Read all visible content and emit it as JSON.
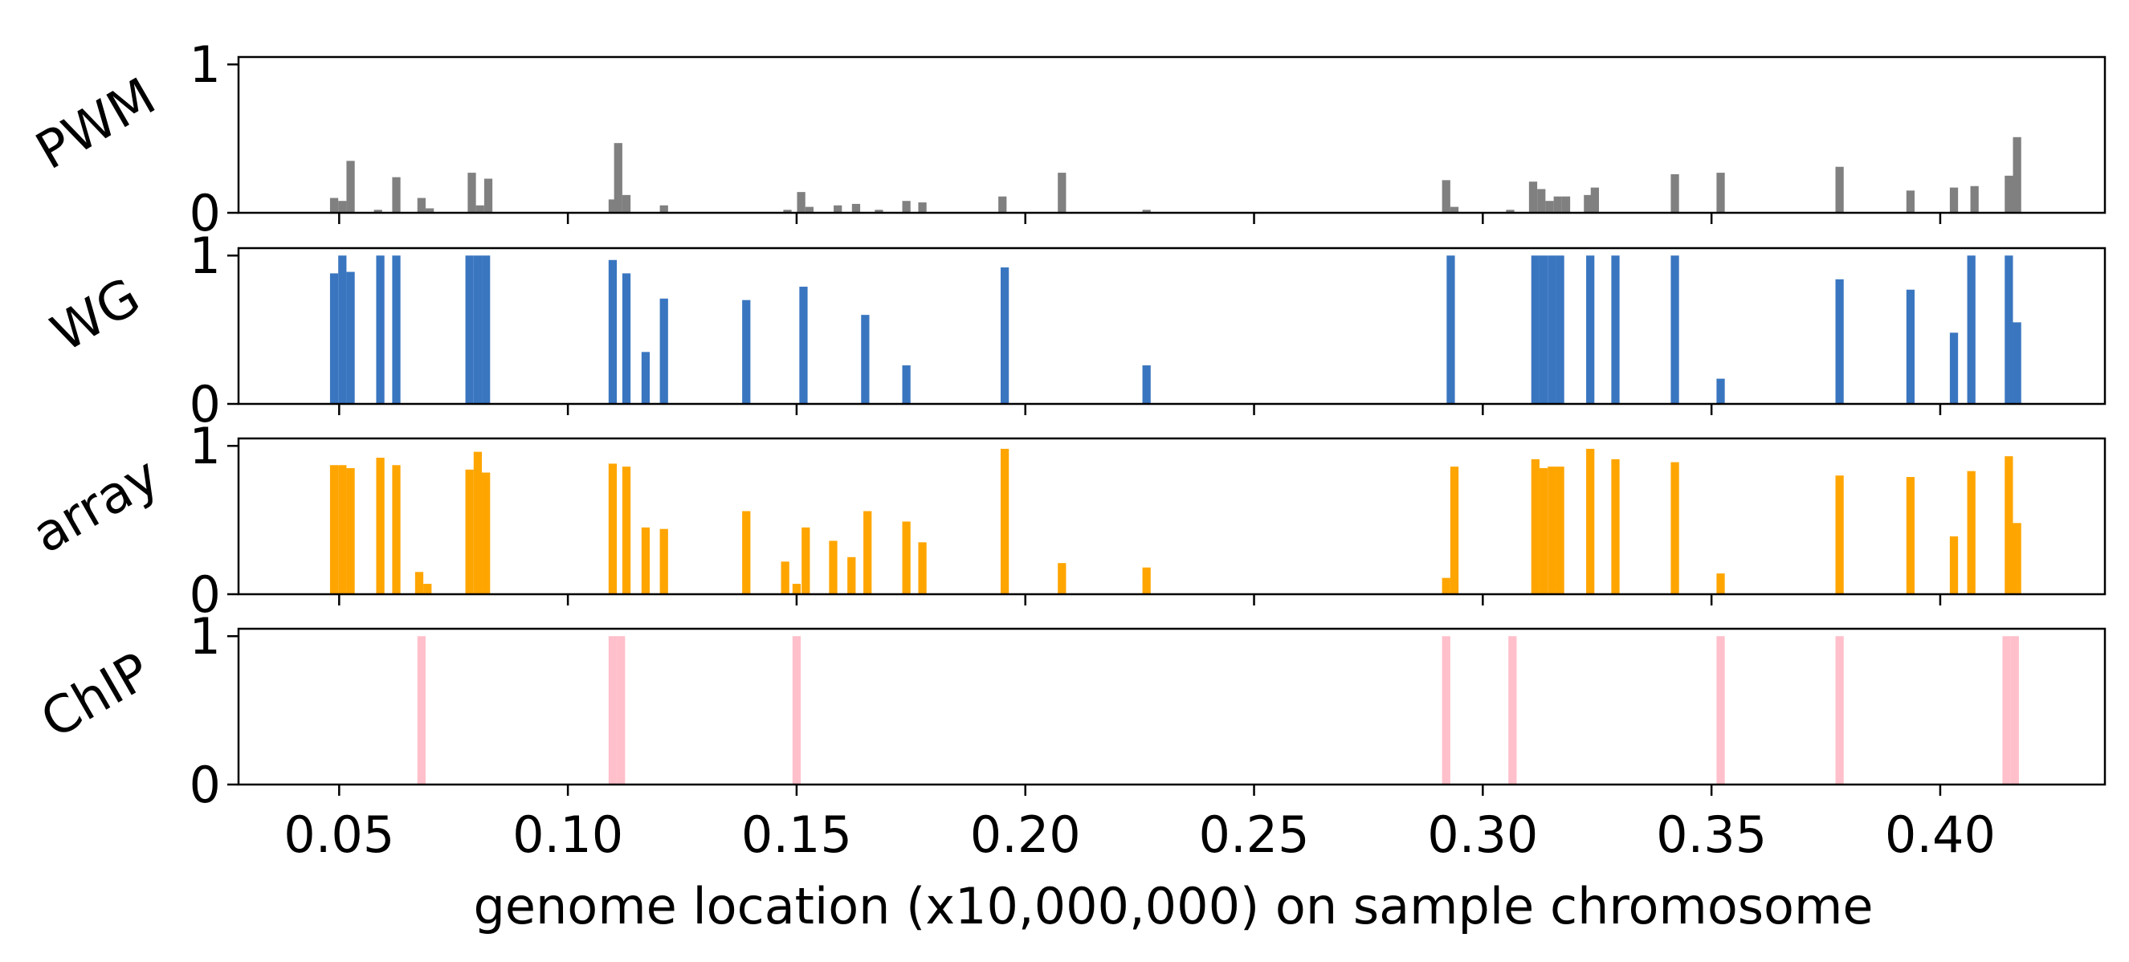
{
  "chart_data": {
    "type": "bar",
    "xlabel": "genome location (x10,000,000) on sample chromosome",
    "xlim": [
      0.028,
      0.436
    ],
    "xticks": [
      0.05,
      0.1,
      0.15,
      0.2,
      0.25,
      0.3,
      0.35,
      0.4
    ],
    "xtick_labels": [
      "0.05",
      "0.10",
      "0.15",
      "0.20",
      "0.25",
      "0.30",
      "0.35",
      "0.40"
    ],
    "ylim": [
      0,
      1.05
    ],
    "yticks": [
      0,
      1
    ],
    "ytick_labels": [
      "0",
      "1"
    ],
    "grid": false,
    "bar_width": 0.0018,
    "panels": [
      {
        "name": "PWM",
        "color": "#808080",
        "bars": [
          {
            "x": 0.0489,
            "y": 0.1
          },
          {
            "x": 0.0507,
            "y": 0.08
          },
          {
            "x": 0.0525,
            "y": 0.35
          },
          {
            "x": 0.0585,
            "y": 0.02
          },
          {
            "x": 0.0625,
            "y": 0.24
          },
          {
            "x": 0.068,
            "y": 0.1
          },
          {
            "x": 0.0698,
            "y": 0.03
          },
          {
            "x": 0.079,
            "y": 0.27
          },
          {
            "x": 0.0808,
            "y": 0.05
          },
          {
            "x": 0.0826,
            "y": 0.23
          },
          {
            "x": 0.1098,
            "y": 0.09
          },
          {
            "x": 0.111,
            "y": 0.47
          },
          {
            "x": 0.1128,
            "y": 0.12
          },
          {
            "x": 0.121,
            "y": 0.05
          },
          {
            "x": 0.148,
            "y": 0.02
          },
          {
            "x": 0.151,
            "y": 0.14
          },
          {
            "x": 0.1528,
            "y": 0.04
          },
          {
            "x": 0.159,
            "y": 0.05
          },
          {
            "x": 0.163,
            "y": 0.06
          },
          {
            "x": 0.168,
            "y": 0.02
          },
          {
            "x": 0.174,
            "y": 0.08
          },
          {
            "x": 0.1775,
            "y": 0.07
          },
          {
            "x": 0.195,
            "y": 0.11
          },
          {
            "x": 0.208,
            "y": 0.27
          },
          {
            "x": 0.2265,
            "y": 0.02
          },
          {
            "x": 0.292,
            "y": 0.22
          },
          {
            "x": 0.2938,
            "y": 0.04
          },
          {
            "x": 0.306,
            "y": 0.02
          },
          {
            "x": 0.311,
            "y": 0.21
          },
          {
            "x": 0.3128,
            "y": 0.16
          },
          {
            "x": 0.3146,
            "y": 0.08
          },
          {
            "x": 0.3164,
            "y": 0.11
          },
          {
            "x": 0.3182,
            "y": 0.11
          },
          {
            "x": 0.323,
            "y": 0.12
          },
          {
            "x": 0.3245,
            "y": 0.17
          },
          {
            "x": 0.342,
            "y": 0.26
          },
          {
            "x": 0.352,
            "y": 0.27
          },
          {
            "x": 0.378,
            "y": 0.31
          },
          {
            "x": 0.3935,
            "y": 0.15
          },
          {
            "x": 0.403,
            "y": 0.17
          },
          {
            "x": 0.4075,
            "y": 0.18
          },
          {
            "x": 0.415,
            "y": 0.25
          },
          {
            "x": 0.4168,
            "y": 0.51
          }
        ]
      },
      {
        "name": "WG",
        "color": "#3a76c0",
        "bars": [
          {
            "x": 0.0489,
            "y": 0.88
          },
          {
            "x": 0.0507,
            "y": 1.0
          },
          {
            "x": 0.0525,
            "y": 0.89
          },
          {
            "x": 0.059,
            "y": 1.0
          },
          {
            "x": 0.0625,
            "y": 1.0
          },
          {
            "x": 0.0785,
            "y": 1.0
          },
          {
            "x": 0.0803,
            "y": 1.0
          },
          {
            "x": 0.0821,
            "y": 1.0
          },
          {
            "x": 0.1098,
            "y": 0.97
          },
          {
            "x": 0.1128,
            "y": 0.88
          },
          {
            "x": 0.117,
            "y": 0.35
          },
          {
            "x": 0.121,
            "y": 0.71
          },
          {
            "x": 0.139,
            "y": 0.7
          },
          {
            "x": 0.1515,
            "y": 0.79
          },
          {
            "x": 0.165,
            "y": 0.6
          },
          {
            "x": 0.174,
            "y": 0.26
          },
          {
            "x": 0.1955,
            "y": 0.92
          },
          {
            "x": 0.2265,
            "y": 0.26
          },
          {
            "x": 0.293,
            "y": 1.0
          },
          {
            "x": 0.3115,
            "y": 1.0
          },
          {
            "x": 0.3133,
            "y": 1.0
          },
          {
            "x": 0.3151,
            "y": 1.0
          },
          {
            "x": 0.3169,
            "y": 1.0
          },
          {
            "x": 0.3235,
            "y": 1.0
          },
          {
            "x": 0.329,
            "y": 1.0
          },
          {
            "x": 0.342,
            "y": 1.0
          },
          {
            "x": 0.352,
            "y": 0.17
          },
          {
            "x": 0.378,
            "y": 0.84
          },
          {
            "x": 0.3935,
            "y": 0.77
          },
          {
            "x": 0.403,
            "y": 0.48
          },
          {
            "x": 0.4068,
            "y": 1.0
          },
          {
            "x": 0.415,
            "y": 1.0
          },
          {
            "x": 0.4168,
            "y": 0.55
          }
        ]
      },
      {
        "name": "array",
        "color": "#ffa500",
        "bars": [
          {
            "x": 0.0489,
            "y": 0.87
          },
          {
            "x": 0.0507,
            "y": 0.87
          },
          {
            "x": 0.0525,
            "y": 0.85
          },
          {
            "x": 0.059,
            "y": 0.92
          },
          {
            "x": 0.0625,
            "y": 0.87
          },
          {
            "x": 0.0675,
            "y": 0.15
          },
          {
            "x": 0.0693,
            "y": 0.07
          },
          {
            "x": 0.0785,
            "y": 0.84
          },
          {
            "x": 0.0803,
            "y": 0.96
          },
          {
            "x": 0.0821,
            "y": 0.82
          },
          {
            "x": 0.1098,
            "y": 0.88
          },
          {
            "x": 0.1128,
            "y": 0.86
          },
          {
            "x": 0.117,
            "y": 0.45
          },
          {
            "x": 0.121,
            "y": 0.44
          },
          {
            "x": 0.139,
            "y": 0.56
          },
          {
            "x": 0.1475,
            "y": 0.22
          },
          {
            "x": 0.15,
            "y": 0.07
          },
          {
            "x": 0.152,
            "y": 0.45
          },
          {
            "x": 0.158,
            "y": 0.36
          },
          {
            "x": 0.162,
            "y": 0.25
          },
          {
            "x": 0.1655,
            "y": 0.56
          },
          {
            "x": 0.174,
            "y": 0.49
          },
          {
            "x": 0.1775,
            "y": 0.35
          },
          {
            "x": 0.1955,
            "y": 0.98
          },
          {
            "x": 0.208,
            "y": 0.21
          },
          {
            "x": 0.2265,
            "y": 0.18
          },
          {
            "x": 0.292,
            "y": 0.11
          },
          {
            "x": 0.2938,
            "y": 0.86
          },
          {
            "x": 0.3115,
            "y": 0.91
          },
          {
            "x": 0.3133,
            "y": 0.85
          },
          {
            "x": 0.3151,
            "y": 0.86
          },
          {
            "x": 0.3169,
            "y": 0.86
          },
          {
            "x": 0.3235,
            "y": 0.98
          },
          {
            "x": 0.329,
            "y": 0.91
          },
          {
            "x": 0.342,
            "y": 0.89
          },
          {
            "x": 0.352,
            "y": 0.14
          },
          {
            "x": 0.378,
            "y": 0.8
          },
          {
            "x": 0.3935,
            "y": 0.79
          },
          {
            "x": 0.403,
            "y": 0.39
          },
          {
            "x": 0.4068,
            "y": 0.83
          },
          {
            "x": 0.415,
            "y": 0.93
          },
          {
            "x": 0.4168,
            "y": 0.48
          }
        ]
      },
      {
        "name": "ChIP",
        "color": "#ffc0cb",
        "bars": [
          {
            "x": 0.068,
            "y": 1.0
          },
          {
            "x": 0.1098,
            "y": 1.0
          },
          {
            "x": 0.1116,
            "y": 1.0
          },
          {
            "x": 0.15,
            "y": 1.0
          },
          {
            "x": 0.292,
            "y": 1.0
          },
          {
            "x": 0.3065,
            "y": 1.0
          },
          {
            "x": 0.352,
            "y": 1.0
          },
          {
            "x": 0.378,
            "y": 1.0
          },
          {
            "x": 0.4145,
            "y": 1.0
          },
          {
            "x": 0.4163,
            "y": 1.0
          }
        ]
      }
    ]
  }
}
